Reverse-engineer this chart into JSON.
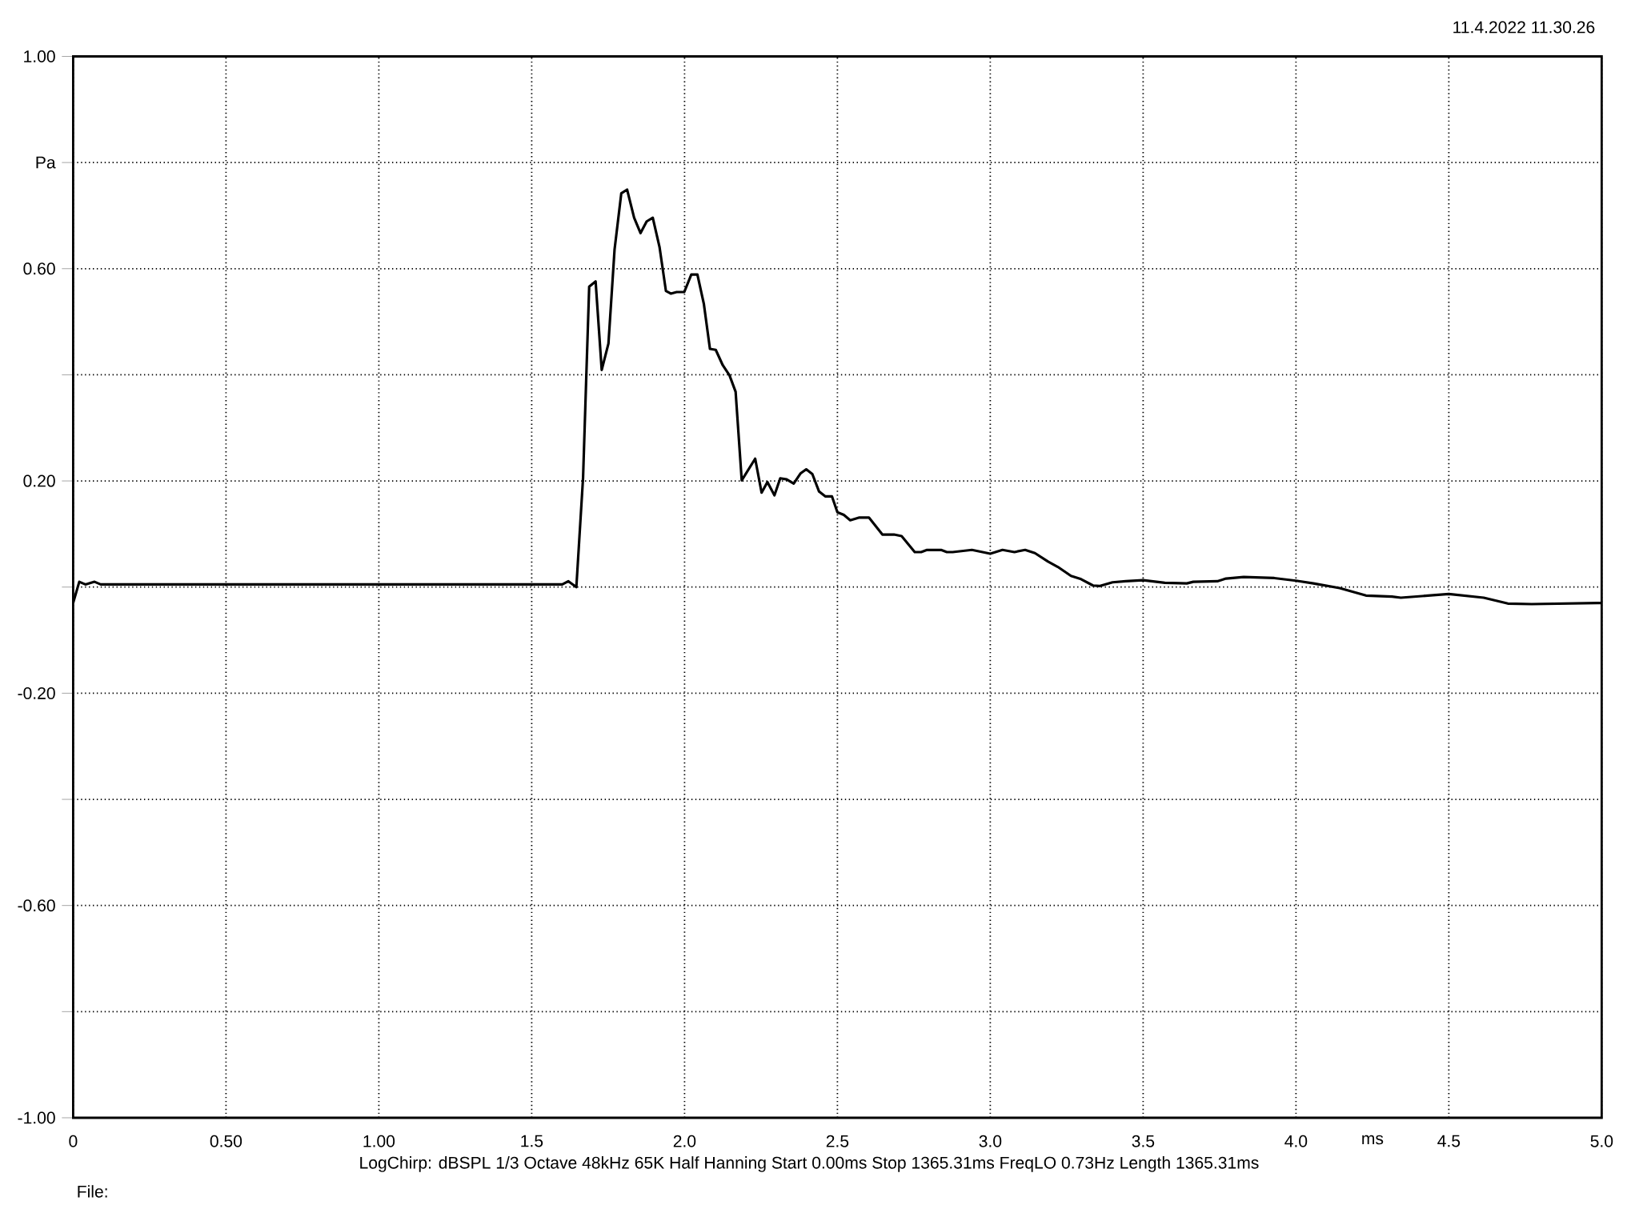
{
  "chart_data": {
    "type": "line",
    "xlabel": "ms",
    "annotations": [
      "11.4.2022 11.30.26",
      "LogChirp:  dBSPL   1/3 Octave   48kHz   65K   Half Hanning   Start 0.00ms    Stop 1365.31ms    FreqLO 0.73Hz    Length 1365.31ms",
      "File:"
    ],
    "x": [
      0,
      0.02,
      0.04,
      0.07,
      0.09,
      1.567,
      1.6,
      1.62,
      1.646,
      1.668,
      1.679,
      1.688,
      1.709,
      1.729,
      1.751,
      1.771,
      1.793,
      1.812,
      1.835,
      1.856,
      1.876,
      1.896,
      1.918,
      1.939,
      1.955,
      1.974,
      1.999,
      2.022,
      2.042,
      2.063,
      2.083,
      2.102,
      2.125,
      2.147,
      2.167,
      2.187,
      2.231,
      2.252,
      2.271,
      2.294,
      2.313,
      2.334,
      2.357,
      2.379,
      2.398,
      2.418,
      2.44,
      2.46,
      2.482,
      2.5,
      2.521,
      2.542,
      2.572,
      2.603,
      2.647,
      2.685,
      2.71,
      2.753,
      2.774,
      2.793,
      2.839,
      2.858,
      2.877,
      2.94,
      3.0,
      3.04,
      3.079,
      3.114,
      3.146,
      3.189,
      3.221,
      3.264,
      3.297,
      3.336,
      3.357,
      3.4,
      3.443,
      3.5,
      3.571,
      3.643,
      3.664,
      3.743,
      3.771,
      3.829,
      3.929,
      4.0,
      4.057,
      4.143,
      4.186,
      4.229,
      4.314,
      4.343,
      4.457,
      4.5,
      4.614,
      4.693,
      4.771,
      4.986,
      5.0
    ],
    "values": [
      -0.03,
      0.01,
      0.005,
      0.01,
      0.005,
      0.005,
      0.005,
      0.011,
      0.0,
      0.206,
      0.405,
      0.566,
      0.576,
      0.409,
      0.459,
      0.636,
      0.742,
      0.749,
      0.696,
      0.667,
      0.689,
      0.696,
      0.641,
      0.558,
      0.553,
      0.556,
      0.556,
      0.589,
      0.589,
      0.534,
      0.449,
      0.447,
      0.418,
      0.399,
      0.368,
      0.201,
      0.242,
      0.178,
      0.198,
      0.173,
      0.205,
      0.203,
      0.195,
      0.214,
      0.222,
      0.213,
      0.18,
      0.171,
      0.171,
      0.141,
      0.136,
      0.126,
      0.131,
      0.131,
      0.099,
      0.099,
      0.096,
      0.066,
      0.066,
      0.07,
      0.07,
      0.066,
      0.066,
      0.07,
      0.063,
      0.07,
      0.066,
      0.07,
      0.064,
      0.048,
      0.038,
      0.021,
      0.015,
      0.003,
      0.002,
      0.009,
      0.011,
      0.013,
      0.008,
      0.007,
      0.01,
      0.011,
      0.016,
      0.019,
      0.017,
      0.012,
      0.007,
      -0.002,
      -0.009,
      -0.016,
      -0.018,
      -0.02,
      -0.015,
      -0.013,
      -0.02,
      -0.031,
      -0.032,
      -0.03,
      -0.03
    ],
    "color": "#000000",
    "xlim": [
      0,
      5
    ],
    "ylim": [
      -1,
      1
    ],
    "xticks": [
      0,
      {
        "value": 0.5,
        "label": "0.50"
      },
      {
        "value": 1,
        "label": "1.00"
      },
      1.5,
      {
        "value": 2,
        "label": "2.0"
      },
      2.5,
      {
        "value": 3,
        "label": "3.0"
      },
      3.5,
      {
        "value": 4,
        "label": "4.0"
      },
      4.5,
      {
        "value": 5,
        "label": "5.0"
      }
    ],
    "yticks": [
      {
        "value": -1,
        "label": "-1.00"
      },
      {
        "value": -0.8,
        "label": null
      },
      {
        "value": -0.6,
        "label": "-0.60"
      },
      {
        "value": -0.4,
        "label": null
      },
      {
        "value": -0.2,
        "label": "-0.20"
      },
      {
        "value": 0,
        "label": null
      },
      {
        "value": 0.2,
        "label": "0.20"
      },
      {
        "value": 0.4,
        "label": null
      },
      {
        "value": 0.6,
        "label": "0.60"
      },
      {
        "value": 0.8,
        "label": "Pa"
      },
      {
        "value": 1,
        "label": "1.00"
      }
    ],
    "grid": true
  }
}
